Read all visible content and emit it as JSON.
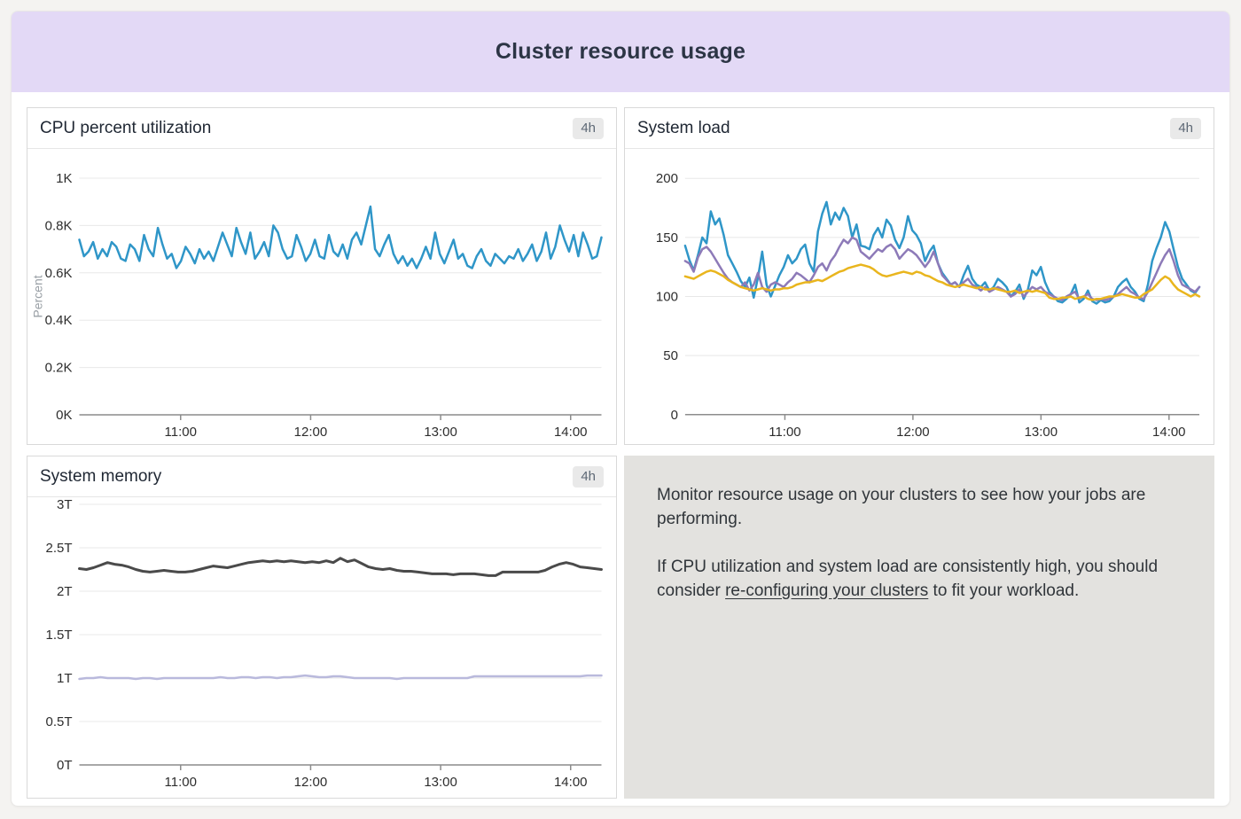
{
  "page": {
    "title": "Cluster resource usage"
  },
  "panels": {
    "cpu": {
      "title": "CPU percent utilization",
      "range_badge": "4h"
    },
    "load": {
      "title": "System load",
      "range_badge": "4h"
    },
    "memory": {
      "title": "System memory",
      "range_badge": "4h"
    },
    "info": {
      "p1": "Monitor resource usage on your clusters to see how your jobs are performing.",
      "p2_before": "If CPU utilization and system load are consistently high, you should consider ",
      "p2_link": "re-configuring your clusters",
      "p2_after": " to fit your workload."
    }
  },
  "colors": {
    "banner_bg": "#e3d9f6",
    "cpu_line": "#2f96c8",
    "load_blue": "#2f96c8",
    "load_purple": "#8d7ab8",
    "load_yellow": "#e9b51d",
    "memory_dark": "#4a4a4a",
    "memory_light": "#b9b9dc",
    "gridline": "#e8e8e8",
    "axis": "#8c8c8c",
    "badge_bg": "#e9e9e9",
    "info_bg": "#e3e2df"
  },
  "chart_data": [
    {
      "id": "cpu",
      "type": "line",
      "title": "CPU percent utilization",
      "xlabel": "",
      "ylabel": "Percent",
      "ylim": [
        0,
        1
      ],
      "grid": true,
      "legend": "none",
      "yticks": [
        {
          "v": 0,
          "label": "0K"
        },
        {
          "v": 0.2,
          "label": "0.2K"
        },
        {
          "v": 0.4,
          "label": "0.4K"
        },
        {
          "v": 0.6,
          "label": "0.6K"
        },
        {
          "v": 0.8,
          "label": "0.8K"
        },
        {
          "v": 1,
          "label": "1K"
        }
      ],
      "xticks": [
        {
          "label": "11:00",
          "pos": 0.194
        },
        {
          "label": "12:00",
          "pos": 0.443
        },
        {
          "label": "13:00",
          "pos": 0.692
        },
        {
          "label": "14:00",
          "pos": 0.941
        }
      ],
      "series": [
        {
          "name": "cpu-percent",
          "color": "#2f96c8",
          "width": 2.5,
          "values": [
            0.74,
            0.67,
            0.69,
            0.73,
            0.66,
            0.7,
            0.67,
            0.73,
            0.71,
            0.66,
            0.65,
            0.72,
            0.7,
            0.65,
            0.76,
            0.7,
            0.67,
            0.79,
            0.72,
            0.66,
            0.68,
            0.62,
            0.65,
            0.71,
            0.68,
            0.64,
            0.7,
            0.66,
            0.69,
            0.65,
            0.71,
            0.77,
            0.72,
            0.67,
            0.79,
            0.73,
            0.68,
            0.77,
            0.66,
            0.69,
            0.73,
            0.67,
            0.8,
            0.77,
            0.7,
            0.66,
            0.67,
            0.76,
            0.71,
            0.65,
            0.68,
            0.74,
            0.67,
            0.66,
            0.76,
            0.69,
            0.67,
            0.72,
            0.66,
            0.74,
            0.77,
            0.72,
            0.8,
            0.88,
            0.7,
            0.67,
            0.72,
            0.76,
            0.68,
            0.64,
            0.67,
            0.63,
            0.66,
            0.62,
            0.66,
            0.71,
            0.66,
            0.77,
            0.68,
            0.64,
            0.69,
            0.74,
            0.66,
            0.68,
            0.63,
            0.62,
            0.67,
            0.7,
            0.65,
            0.63,
            0.68,
            0.66,
            0.64,
            0.67,
            0.66,
            0.7,
            0.65,
            0.68,
            0.72,
            0.65,
            0.69,
            0.77,
            0.66,
            0.71,
            0.8,
            0.74,
            0.69,
            0.76,
            0.67,
            0.77,
            0.72,
            0.66,
            0.67,
            0.75
          ]
        }
      ]
    },
    {
      "id": "load",
      "type": "line",
      "title": "System load",
      "xlabel": "",
      "ylabel": "",
      "ylim": [
        0,
        200
      ],
      "grid": true,
      "legend": "none",
      "yticks": [
        {
          "v": 0,
          "label": "0"
        },
        {
          "v": 50,
          "label": "50"
        },
        {
          "v": 100,
          "label": "100"
        },
        {
          "v": 150,
          "label": "150"
        },
        {
          "v": 200,
          "label": "200"
        }
      ],
      "xticks": [
        {
          "label": "11:00",
          "pos": 0.194
        },
        {
          "label": "12:00",
          "pos": 0.443
        },
        {
          "label": "13:00",
          "pos": 0.692
        },
        {
          "label": "14:00",
          "pos": 0.941
        }
      ],
      "series": [
        {
          "name": "load-blue",
          "color": "#2f96c8",
          "width": 2.5,
          "values": [
            143,
            131,
            122,
            135,
            150,
            145,
            172,
            161,
            166,
            152,
            135,
            128,
            121,
            113,
            108,
            116,
            99,
            116,
            138,
            110,
            100,
            109,
            118,
            125,
            135,
            128,
            132,
            140,
            144,
            128,
            121,
            155,
            170,
            180,
            161,
            171,
            165,
            175,
            168,
            150,
            161,
            143,
            142,
            140,
            152,
            158,
            150,
            165,
            160,
            148,
            141,
            150,
            168,
            156,
            152,
            145,
            130,
            138,
            143,
            128,
            120,
            115,
            110,
            112,
            108,
            118,
            126,
            115,
            110,
            108,
            112,
            105,
            108,
            115,
            112,
            108,
            100,
            104,
            110,
            98,
            106,
            122,
            118,
            125,
            112,
            104,
            100,
            96,
            95,
            98,
            102,
            110,
            95,
            98,
            105,
            96,
            94,
            97,
            95,
            96,
            100,
            108,
            112,
            115,
            108,
            104,
            98,
            96,
            110,
            130,
            141,
            150,
            163,
            155,
            140,
            125,
            115,
            110,
            105,
            103,
            108
          ]
        },
        {
          "name": "load-purple",
          "color": "#8d7ab8",
          "width": 2.5,
          "values": [
            130,
            128,
            121,
            133,
            140,
            142,
            138,
            132,
            126,
            120,
            115,
            112,
            110,
            108,
            112,
            105,
            110,
            120,
            108,
            104,
            110,
            112,
            110,
            108,
            112,
            115,
            120,
            118,
            115,
            112,
            118,
            125,
            128,
            122,
            130,
            135,
            142,
            148,
            145,
            150,
            148,
            138,
            135,
            132,
            136,
            140,
            138,
            142,
            144,
            140,
            132,
            136,
            140,
            138,
            135,
            130,
            125,
            130,
            138,
            128,
            118,
            114,
            110,
            112,
            108,
            112,
            115,
            110,
            108,
            105,
            108,
            104,
            106,
            108,
            106,
            104,
            100,
            102,
            106,
            100,
            104,
            108,
            106,
            108,
            104,
            102,
            100,
            98,
            97,
            100,
            102,
            104,
            98,
            100,
            102,
            98,
            97,
            98,
            97,
            98,
            100,
            102,
            105,
            108,
            104,
            102,
            99,
            98,
            104,
            112,
            120,
            128,
            135,
            140,
            130,
            118,
            110,
            108,
            106,
            104,
            108
          ]
        },
        {
          "name": "load-yellow",
          "color": "#e9b51d",
          "width": 2.5,
          "values": [
            117,
            116,
            115,
            117,
            119,
            121,
            122,
            121,
            119,
            117,
            114,
            112,
            110,
            108,
            107,
            106,
            105,
            106,
            107,
            106,
            105,
            106,
            106,
            107,
            107,
            108,
            110,
            111,
            112,
            112,
            113,
            114,
            113,
            115,
            117,
            119,
            121,
            122,
            124,
            125,
            126,
            127,
            126,
            125,
            123,
            120,
            118,
            117,
            118,
            119,
            120,
            121,
            120,
            119,
            121,
            120,
            118,
            117,
            115,
            113,
            112,
            110,
            109,
            108,
            109,
            110,
            109,
            108,
            107,
            108,
            106,
            106,
            107,
            106,
            105,
            104,
            104,
            105,
            103,
            104,
            105,
            104,
            105,
            104,
            103,
            99,
            98,
            98,
            99,
            99,
            100,
            98,
            99,
            100,
            98,
            97,
            98,
            98,
            99,
            100,
            100,
            101,
            102,
            101,
            100,
            99,
            99,
            102,
            104,
            106,
            110,
            114,
            117,
            115,
            110,
            106,
            104,
            102,
            100,
            102,
            100
          ]
        }
      ]
    },
    {
      "id": "memory",
      "type": "line",
      "title": "System memory",
      "xlabel": "",
      "ylabel": "",
      "ylim": [
        0,
        3
      ],
      "grid": true,
      "legend": "none",
      "yticks": [
        {
          "v": 0,
          "label": "0T"
        },
        {
          "v": 0.5,
          "label": "0.5T"
        },
        {
          "v": 1,
          "label": "1T"
        },
        {
          "v": 1.5,
          "label": "1.5T"
        },
        {
          "v": 2,
          "label": "2T"
        },
        {
          "v": 2.5,
          "label": "2.5T"
        },
        {
          "v": 3,
          "label": "3T"
        }
      ],
      "xticks": [
        {
          "label": "11:00",
          "pos": 0.194
        },
        {
          "label": "12:00",
          "pos": 0.443
        },
        {
          "label": "13:00",
          "pos": 0.692
        },
        {
          "label": "14:00",
          "pos": 0.941
        }
      ],
      "series": [
        {
          "name": "memory-dark",
          "color": "#4a4a4a",
          "width": 3,
          "values": [
            2.26,
            2.25,
            2.27,
            2.3,
            2.33,
            2.31,
            2.3,
            2.28,
            2.25,
            2.23,
            2.22,
            2.23,
            2.24,
            2.23,
            2.22,
            2.22,
            2.23,
            2.25,
            2.27,
            2.29,
            2.28,
            2.27,
            2.29,
            2.31,
            2.33,
            2.34,
            2.35,
            2.34,
            2.35,
            2.34,
            2.35,
            2.34,
            2.33,
            2.34,
            2.33,
            2.35,
            2.33,
            2.38,
            2.34,
            2.36,
            2.32,
            2.28,
            2.26,
            2.25,
            2.26,
            2.24,
            2.23,
            2.23,
            2.22,
            2.21,
            2.2,
            2.2,
            2.2,
            2.19,
            2.2,
            2.2,
            2.2,
            2.19,
            2.18,
            2.18,
            2.22,
            2.22,
            2.22,
            2.22,
            2.22,
            2.22,
            2.24,
            2.28,
            2.31,
            2.33,
            2.31,
            2.28,
            2.27,
            2.26,
            2.25
          ]
        },
        {
          "name": "memory-light",
          "color": "#b9b9dc",
          "width": 2.5,
          "values": [
            0.99,
            1.0,
            1.0,
            1.01,
            1.0,
            1.0,
            1.0,
            1.0,
            0.99,
            1.0,
            1.0,
            0.99,
            1.0,
            1.0,
            1.0,
            1.0,
            1.0,
            1.0,
            1.0,
            1.0,
            1.01,
            1.0,
            1.0,
            1.01,
            1.01,
            1.0,
            1.01,
            1.01,
            1.0,
            1.01,
            1.01,
            1.02,
            1.03,
            1.02,
            1.01,
            1.01,
            1.02,
            1.02,
            1.01,
            1.0,
            1.0,
            1.0,
            1.0,
            1.0,
            1.0,
            0.99,
            1.0,
            1.0,
            1.0,
            1.0,
            1.0,
            1.0,
            1.0,
            1.0,
            1.0,
            1.0,
            1.02,
            1.02,
            1.02,
            1.02,
            1.02,
            1.02,
            1.02,
            1.02,
            1.02,
            1.02,
            1.02,
            1.02,
            1.02,
            1.02,
            1.02,
            1.02,
            1.03,
            1.03,
            1.03
          ]
        }
      ]
    }
  ]
}
